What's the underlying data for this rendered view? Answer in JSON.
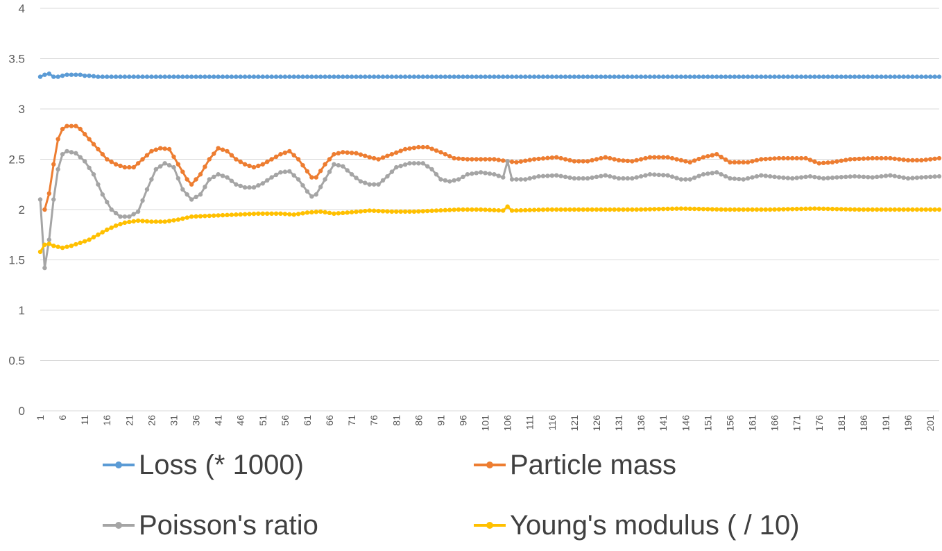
{
  "chart_data": {
    "type": "line",
    "title": "",
    "xlabel": "",
    "ylabel": "",
    "ylim": [
      0,
      4
    ],
    "yticks": [
      0,
      0.5,
      1,
      1.5,
      2,
      2.5,
      3,
      3.5,
      4
    ],
    "ytick_labels": [
      "0",
      "0.5",
      "1",
      "1.5",
      "2",
      "2.5",
      "3",
      "3.5",
      "4"
    ],
    "xlim": [
      1,
      203
    ],
    "xticks": [
      1,
      6,
      11,
      16,
      21,
      26,
      31,
      36,
      41,
      46,
      51,
      56,
      61,
      66,
      71,
      76,
      81,
      86,
      91,
      96,
      101,
      106,
      111,
      116,
      121,
      126,
      131,
      136,
      141,
      146,
      151,
      156,
      161,
      166,
      171,
      176,
      181,
      186,
      191,
      196,
      201
    ],
    "xtick_labels": [
      "1",
      "6",
      "11",
      "16",
      "21",
      "26",
      "31",
      "36",
      "41",
      "46",
      "51",
      "56",
      "61",
      "66",
      "71",
      "76",
      "81",
      "86",
      "91",
      "96",
      "101",
      "106",
      "111",
      "116",
      "121",
      "126",
      "131",
      "136",
      "141",
      "146",
      "151",
      "156",
      "161",
      "166",
      "171",
      "176",
      "181",
      "186",
      "191",
      "196",
      "201"
    ],
    "grid": true,
    "legend_position": "bottom",
    "series": [
      {
        "name": "Loss (* 1000)",
        "color": "#5b9bd5",
        "points": [
          [
            1,
            3.32
          ],
          [
            2,
            3.34
          ],
          [
            3,
            3.35
          ],
          [
            4,
            3.32
          ],
          [
            5,
            3.32
          ],
          [
            6,
            3.33
          ],
          [
            7,
            3.34
          ],
          [
            8,
            3.34
          ],
          [
            9,
            3.34
          ],
          [
            10,
            3.34
          ],
          [
            11,
            3.33
          ],
          [
            12,
            3.33
          ],
          [
            14,
            3.32
          ],
          [
            20,
            3.32
          ],
          [
            40,
            3.32
          ],
          [
            60,
            3.32
          ],
          [
            80,
            3.32
          ],
          [
            100,
            3.32
          ],
          [
            120,
            3.32
          ],
          [
            140,
            3.32
          ],
          [
            160,
            3.32
          ],
          [
            180,
            3.32
          ],
          [
            203,
            3.32
          ]
        ]
      },
      {
        "name": "Particle mass",
        "color": "#ed7d31",
        "points": [
          [
            2,
            2.0
          ],
          [
            3,
            2.16
          ],
          [
            4,
            2.45
          ],
          [
            5,
            2.7
          ],
          [
            6,
            2.8
          ],
          [
            7,
            2.83
          ],
          [
            9,
            2.83
          ],
          [
            10,
            2.8
          ],
          [
            12,
            2.7
          ],
          [
            14,
            2.6
          ],
          [
            16,
            2.5
          ],
          [
            18,
            2.45
          ],
          [
            20,
            2.42
          ],
          [
            22,
            2.42
          ],
          [
            24,
            2.5
          ],
          [
            26,
            2.58
          ],
          [
            28,
            2.61
          ],
          [
            30,
            2.6
          ],
          [
            32,
            2.45
          ],
          [
            34,
            2.3
          ],
          [
            35,
            2.25
          ],
          [
            37,
            2.35
          ],
          [
            39,
            2.5
          ],
          [
            41,
            2.61
          ],
          [
            43,
            2.58
          ],
          [
            45,
            2.5
          ],
          [
            47,
            2.45
          ],
          [
            49,
            2.42
          ],
          [
            51,
            2.45
          ],
          [
            53,
            2.5
          ],
          [
            55,
            2.55
          ],
          [
            57,
            2.58
          ],
          [
            59,
            2.5
          ],
          [
            61,
            2.38
          ],
          [
            62,
            2.32
          ],
          [
            63,
            2.32
          ],
          [
            65,
            2.45
          ],
          [
            67,
            2.55
          ],
          [
            69,
            2.57
          ],
          [
            72,
            2.56
          ],
          [
            75,
            2.52
          ],
          [
            77,
            2.5
          ],
          [
            80,
            2.55
          ],
          [
            83,
            2.6
          ],
          [
            86,
            2.62
          ],
          [
            88,
            2.62
          ],
          [
            91,
            2.57
          ],
          [
            94,
            2.51
          ],
          [
            97,
            2.5
          ],
          [
            103,
            2.5
          ],
          [
            106,
            2.48
          ],
          [
            108,
            2.47
          ],
          [
            112,
            2.5
          ],
          [
            117,
            2.52
          ],
          [
            121,
            2.48
          ],
          [
            124,
            2.48
          ],
          [
            128,
            2.52
          ],
          [
            131,
            2.49
          ],
          [
            134,
            2.48
          ],
          [
            138,
            2.52
          ],
          [
            142,
            2.52
          ],
          [
            145,
            2.49
          ],
          [
            147,
            2.47
          ],
          [
            150,
            2.52
          ],
          [
            153,
            2.55
          ],
          [
            156,
            2.47
          ],
          [
            160,
            2.47
          ],
          [
            163,
            2.5
          ],
          [
            167,
            2.51
          ],
          [
            173,
            2.51
          ],
          [
            176,
            2.46
          ],
          [
            179,
            2.47
          ],
          [
            183,
            2.5
          ],
          [
            188,
            2.51
          ],
          [
            192,
            2.51
          ],
          [
            196,
            2.49
          ],
          [
            199,
            2.49
          ],
          [
            203,
            2.51
          ]
        ]
      },
      {
        "name": "Poisson's ratio",
        "color": "#a5a5a5",
        "points": [
          [
            1,
            2.1
          ],
          [
            2,
            1.42
          ],
          [
            3,
            1.7
          ],
          [
            4,
            2.1
          ],
          [
            5,
            2.4
          ],
          [
            6,
            2.55
          ],
          [
            7,
            2.58
          ],
          [
            9,
            2.56
          ],
          [
            11,
            2.48
          ],
          [
            13,
            2.35
          ],
          [
            15,
            2.15
          ],
          [
            17,
            2.0
          ],
          [
            19,
            1.93
          ],
          [
            21,
            1.93
          ],
          [
            23,
            1.98
          ],
          [
            25,
            2.2
          ],
          [
            27,
            2.4
          ],
          [
            29,
            2.46
          ],
          [
            31,
            2.42
          ],
          [
            33,
            2.2
          ],
          [
            35,
            2.1
          ],
          [
            37,
            2.15
          ],
          [
            39,
            2.3
          ],
          [
            41,
            2.35
          ],
          [
            43,
            2.32
          ],
          [
            45,
            2.25
          ],
          [
            47,
            2.22
          ],
          [
            49,
            2.22
          ],
          [
            51,
            2.26
          ],
          [
            53,
            2.32
          ],
          [
            55,
            2.37
          ],
          [
            57,
            2.38
          ],
          [
            59,
            2.3
          ],
          [
            61,
            2.18
          ],
          [
            62,
            2.13
          ],
          [
            63,
            2.15
          ],
          [
            65,
            2.3
          ],
          [
            67,
            2.45
          ],
          [
            69,
            2.43
          ],
          [
            71,
            2.35
          ],
          [
            73,
            2.28
          ],
          [
            75,
            2.25
          ],
          [
            77,
            2.25
          ],
          [
            79,
            2.33
          ],
          [
            81,
            2.42
          ],
          [
            84,
            2.46
          ],
          [
            87,
            2.46
          ],
          [
            89,
            2.4
          ],
          [
            91,
            2.3
          ],
          [
            93,
            2.28
          ],
          [
            95,
            2.3
          ],
          [
            97,
            2.35
          ],
          [
            100,
            2.37
          ],
          [
            103,
            2.35
          ],
          [
            105,
            2.32
          ],
          [
            106,
            2.48
          ],
          [
            107,
            2.3
          ],
          [
            110,
            2.3
          ],
          [
            113,
            2.33
          ],
          [
            117,
            2.34
          ],
          [
            121,
            2.31
          ],
          [
            124,
            2.31
          ],
          [
            128,
            2.34
          ],
          [
            131,
            2.31
          ],
          [
            134,
            2.31
          ],
          [
            138,
            2.35
          ],
          [
            142,
            2.34
          ],
          [
            145,
            2.3
          ],
          [
            147,
            2.3
          ],
          [
            150,
            2.35
          ],
          [
            153,
            2.37
          ],
          [
            156,
            2.31
          ],
          [
            159,
            2.3
          ],
          [
            163,
            2.34
          ],
          [
            167,
            2.32
          ],
          [
            170,
            2.31
          ],
          [
            174,
            2.33
          ],
          [
            177,
            2.31
          ],
          [
            180,
            2.32
          ],
          [
            184,
            2.33
          ],
          [
            188,
            2.32
          ],
          [
            192,
            2.34
          ],
          [
            196,
            2.31
          ],
          [
            199,
            2.32
          ],
          [
            203,
            2.33
          ]
        ]
      },
      {
        "name": "Young's modulus ( / 10)",
        "color": "#ffc000",
        "points": [
          [
            1,
            1.58
          ],
          [
            2,
            1.65
          ],
          [
            3,
            1.66
          ],
          [
            4,
            1.64
          ],
          [
            5,
            1.63
          ],
          [
            6,
            1.62
          ],
          [
            8,
            1.64
          ],
          [
            10,
            1.67
          ],
          [
            12,
            1.7
          ],
          [
            14,
            1.75
          ],
          [
            16,
            1.8
          ],
          [
            18,
            1.84
          ],
          [
            20,
            1.87
          ],
          [
            23,
            1.89
          ],
          [
            26,
            1.88
          ],
          [
            29,
            1.88
          ],
          [
            32,
            1.9
          ],
          [
            35,
            1.93
          ],
          [
            40,
            1.94
          ],
          [
            45,
            1.95
          ],
          [
            50,
            1.96
          ],
          [
            55,
            1.96
          ],
          [
            58,
            1.95
          ],
          [
            61,
            1.97
          ],
          [
            64,
            1.98
          ],
          [
            67,
            1.96
          ],
          [
            70,
            1.97
          ],
          [
            75,
            1.99
          ],
          [
            80,
            1.98
          ],
          [
            85,
            1.98
          ],
          [
            90,
            1.99
          ],
          [
            95,
            2.0
          ],
          [
            100,
            2.0
          ],
          [
            105,
            1.99
          ],
          [
            106,
            2.03
          ],
          [
            107,
            1.99
          ],
          [
            115,
            2.0
          ],
          [
            125,
            2.0
          ],
          [
            135,
            2.0
          ],
          [
            145,
            2.01
          ],
          [
            155,
            2.0
          ],
          [
            165,
            2.0
          ],
          [
            175,
            2.01
          ],
          [
            185,
            2.0
          ],
          [
            195,
            2.0
          ],
          [
            203,
            2.0
          ]
        ]
      }
    ]
  }
}
